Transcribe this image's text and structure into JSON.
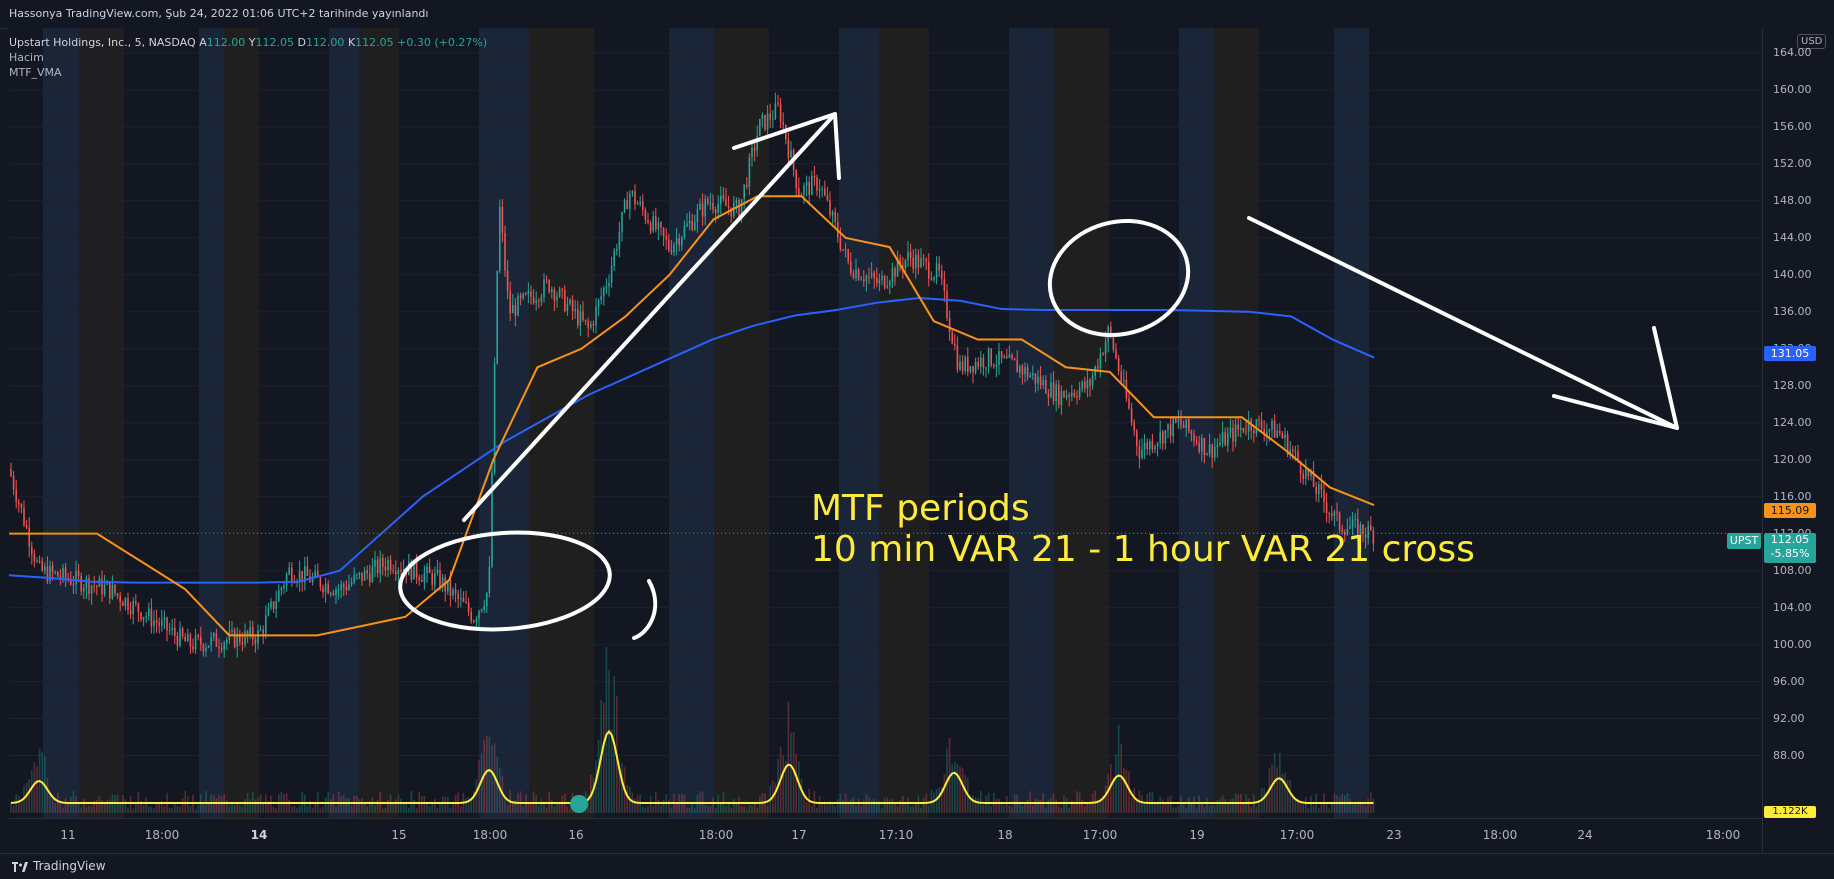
{
  "header": {
    "publisher": "Hassonya TradingView.com, Şub 24, 2022 01:06 UTC+2 tarihinde yayınlandı"
  },
  "legend": {
    "symbol": "Upstart Holdings, Inc., 5, NASDAQ",
    "ohlc": [
      {
        "k": "A",
        "v": "112.00"
      },
      {
        "k": "Y",
        "v": "112.05"
      },
      {
        "k": "D",
        "v": "112.00"
      },
      {
        "k": "K",
        "v": "112.05"
      }
    ],
    "change": "+0.30 (+0.27%)",
    "indicators": [
      "Hacim",
      "MTF_VMA"
    ]
  },
  "annotation": {
    "line1": "MTF periods",
    "line2": "10 min VAR 21 - 1 hour VAR 21 cross"
  },
  "price_axis": {
    "currency": "USD",
    "ticks": [
      "164.00",
      "160.00",
      "156.00",
      "152.00",
      "148.00",
      "144.00",
      "140.00",
      "136.00",
      "132.00",
      "128.00",
      "124.00",
      "120.00",
      "116.00",
      "112.00",
      "108.00",
      "104.00",
      "100.00",
      "96.00",
      "92.00",
      "88.00"
    ],
    "badges": {
      "blue_line": "131.05",
      "orange_line": "115.09",
      "last_price": "112.05",
      "last_change": "-5.85%",
      "ticker": "UPST",
      "volume": "1.122K"
    }
  },
  "time_axis": {
    "labels": [
      {
        "t": "11",
        "bold": false
      },
      {
        "t": "18:00",
        "bold": false
      },
      {
        "t": "14",
        "bold": true
      },
      {
        "t": "15",
        "bold": false
      },
      {
        "t": "18:00",
        "bold": false
      },
      {
        "t": "16",
        "bold": false
      },
      {
        "t": "18:00",
        "bold": false
      },
      {
        "t": "17",
        "bold": false
      },
      {
        "t": "17:10",
        "bold": false
      },
      {
        "t": "18",
        "bold": false
      },
      {
        "t": "17:00",
        "bold": false
      },
      {
        "t": "19",
        "bold": false
      },
      {
        "t": "17:00",
        "bold": false
      },
      {
        "t": "23",
        "bold": false
      },
      {
        "t": "18:00",
        "bold": false
      },
      {
        "t": "24",
        "bold": false
      },
      {
        "t": "18:00",
        "bold": false
      }
    ]
  },
  "footer": {
    "brand": "TradingView"
  },
  "colors": {
    "background": "#131722",
    "up": "#26a69a",
    "down": "#ef5350",
    "vma_10m": "#f7931a",
    "vma_1h": "#2962ff",
    "volume_ma": "#ffeb3b",
    "annotation": "#ffeb3b"
  },
  "chart_data": {
    "type": "line",
    "series": [
      {
        "name": "MTF_VMA",
        "values": [
          107.5,
          107.2,
          106.8,
          106.7,
          106.7,
          106.7,
          106.7,
          106.8,
          108,
          112,
          116,
          119,
          122,
          124.5,
          127,
          129,
          131,
          133,
          134.5,
          135.6,
          136.2,
          137,
          137.5,
          137.2,
          136.3,
          136.2,
          136.2,
          136.2,
          136.2,
          136.1,
          136,
          135.5,
          133,
          131.05
        ]
      },
      {
        "name": "MTF_VMA",
        "values": [
          112,
          112,
          112,
          109,
          106,
          101,
          101,
          101,
          102,
          103,
          107,
          120,
          130,
          132,
          135.5,
          140,
          146,
          148.5,
          148.5,
          144,
          143,
          135,
          133,
          133,
          130,
          129.5,
          124.6,
          124.6,
          124.6,
          121,
          117,
          115.09
        ]
      }
    ],
    "ylim": [
      86,
      164
    ],
    "last": {
      "price": 112.05,
      "change_pct": -5.85
    }
  }
}
